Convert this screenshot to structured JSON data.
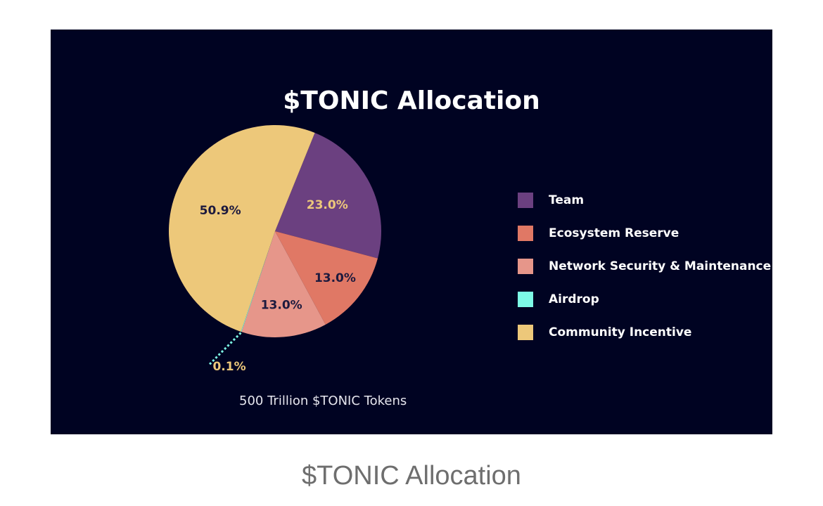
{
  "chart_data": {
    "type": "pie",
    "title": "$TONIC Allocation",
    "subtitle": "500 Trillion $TONIC Tokens",
    "categories": [
      "Team",
      "Ecosystem Reserve",
      "Network Security & Maintenance",
      "Airdrop",
      "Community Incentive"
    ],
    "values": [
      23.0,
      13.0,
      13.0,
      0.1,
      50.9
    ],
    "data_labels": [
      "23.0%",
      "13.0%",
      "13.0%",
      "0.1%",
      "50.9%"
    ],
    "colors": [
      "#6b4080",
      "#e07865",
      "#e6968a",
      "#7dfae6",
      "#edc87a"
    ],
    "label_colors": [
      "#edc87a",
      "#1d1a3e",
      "#1d1a3e",
      "#edc87a",
      "#1d1a3e"
    ],
    "legend_position": "right",
    "background": "#000322"
  },
  "caption": "$TONIC Allocation"
}
